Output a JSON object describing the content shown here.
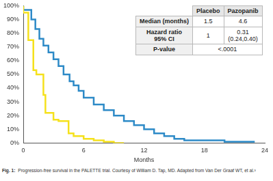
{
  "chart_data": {
    "type": "line",
    "xlabel": "Months",
    "xlim": [
      0,
      24
    ],
    "xticks": [
      0,
      6,
      12,
      18,
      24
    ],
    "ylim": [
      0,
      100
    ],
    "yticks": [
      {
        "value": 0,
        "label": "0%"
      },
      {
        "value": 10,
        "label": "10%"
      },
      {
        "value": 20,
        "label": "20%"
      },
      {
        "value": 30,
        "label": "30%"
      },
      {
        "value": 40,
        "label": "40%"
      },
      {
        "value": 50,
        "label": "50%"
      },
      {
        "value": 60,
        "label": "60%"
      },
      {
        "value": 70,
        "label": "70%"
      },
      {
        "value": 80,
        "label": "80%"
      },
      {
        "value": 90,
        "label": "90%"
      },
      {
        "value": 100,
        "label": "100%"
      }
    ],
    "grid": false,
    "line_style": "step",
    "series": [
      {
        "name": "Placebo",
        "color": "#f5e11c",
        "x": [
          0,
          0.5,
          1,
          1.3,
          2,
          2.2,
          3,
          3.5,
          4.5,
          5,
          6,
          7,
          8,
          9,
          10
        ],
        "values": [
          100,
          95,
          75,
          53,
          50,
          35,
          22,
          17,
          16,
          7,
          5,
          3,
          2,
          1,
          0
        ]
      },
      {
        "name": "Pazopanib",
        "color": "#2d8ac7",
        "x": [
          0,
          0.8,
          1.2,
          1.6,
          2,
          2.5,
          3,
          3.5,
          4,
          4.6,
          5,
          5.5,
          6,
          7,
          8,
          9,
          10,
          11,
          12,
          13,
          14,
          15,
          16,
          18,
          20,
          23
        ],
        "values": [
          100,
          97,
          90,
          83,
          76,
          71,
          66,
          61,
          56,
          50,
          45,
          42,
          38,
          33,
          28,
          24,
          20,
          16,
          13,
          10,
          7,
          5,
          3,
          2,
          2,
          1
        ]
      }
    ]
  },
  "table": {
    "rows": [
      [
        "",
        "Placebo",
        "Pazopanib"
      ],
      [
        "Median (months)",
        "1.5",
        "4.6"
      ],
      [
        "Hazard ratio\n95% CI",
        "1",
        "0.31\n(0.24,0.40)"
      ],
      [
        "P-value",
        "<.0001"
      ]
    ]
  },
  "caption": {
    "label": "Fig. 1:",
    "text": "Progression-free survival in the PALETTE trial. Courtesy of William D. Tap, MD. Adapted from Van Der Graaf WT, et al.³"
  }
}
